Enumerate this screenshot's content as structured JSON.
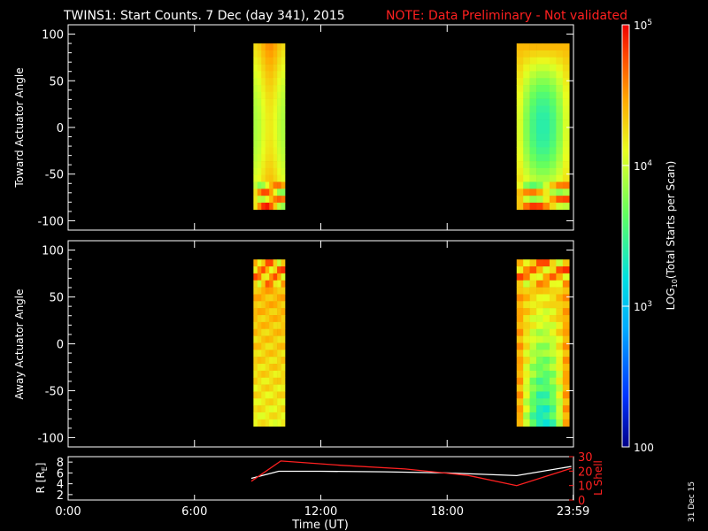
{
  "title": {
    "main": "TWINS1: Start Counts.  7 Dec (day 341), 2015",
    "note": "NOTE: Data Preliminary - Not validated",
    "note_color": "#ff2020"
  },
  "date_stamp": "31 Dec 15",
  "chart_data": [
    {
      "type": "heatmap",
      "name": "toward",
      "ylabel": "Toward Actuator Angle",
      "ylim": [
        -110,
        110
      ],
      "yticks": [
        100,
        50,
        0,
        -50,
        -100
      ],
      "ytick_labels": [
        "100",
        "50",
        "0",
        "-50",
        "-100"
      ],
      "xlim": [
        0,
        24
      ],
      "angle_range": [
        -88,
        90
      ],
      "data_intervals": [
        {
          "start_h": 8.8,
          "end_h": 10.3
        },
        {
          "start_h": 21.3,
          "end_h": 23.8
        }
      ]
    },
    {
      "type": "heatmap",
      "name": "away",
      "ylabel": "Away Actuator Angle",
      "ylim": [
        -110,
        110
      ],
      "yticks": [
        100,
        50,
        0,
        -50,
        -100
      ],
      "ytick_labels": [
        "100",
        "50",
        "0",
        "-50",
        "-100"
      ],
      "xlim": [
        0,
        24
      ],
      "angle_range": [
        -88,
        90
      ],
      "data_intervals": [
        {
          "start_h": 8.8,
          "end_h": 10.3
        },
        {
          "start_h": 21.3,
          "end_h": 23.8
        }
      ]
    },
    {
      "type": "line",
      "name": "orbit",
      "ylabel": "R [R",
      "ylabel_sub": "E",
      "ylabel_end": "]",
      "ylim": [
        1,
        9
      ],
      "yticks": [
        8,
        6,
        4,
        2
      ],
      "ytick_labels": [
        "8",
        "6",
        "4",
        "2"
      ],
      "y2label": "L Shell",
      "y2lim": [
        0,
        30
      ],
      "y2ticks": [
        30,
        20,
        10,
        0
      ],
      "y2tick_labels": [
        "30",
        "20",
        "10",
        "0"
      ],
      "xlim": [
        0,
        24
      ],
      "xlabel": "Time (UT)",
      "xticks": [
        0,
        6,
        12,
        18,
        23.983
      ],
      "xtick_labels": [
        "0:00",
        "6:00",
        "12:00",
        "18:00",
        "23:59"
      ],
      "series": [
        {
          "axis": "left",
          "color": "#ffffff",
          "x": [
            8.7,
            10.0,
            12.0,
            15.0,
            18.0,
            21.3,
            23.9
          ],
          "y": [
            5.0,
            6.3,
            6.3,
            6.2,
            6.0,
            5.5,
            7.2
          ]
        },
        {
          "axis": "right",
          "color": "#ff2020",
          "x": [
            8.7,
            10.1,
            13.0,
            16.0,
            19.0,
            21.3,
            23.9
          ],
          "y": [
            13,
            27,
            24,
            21.5,
            17,
            10,
            22
          ]
        }
      ]
    }
  ],
  "colorbar": {
    "label": "LOG",
    "label_sub": "10",
    "label_rest": "(Total Starts per Scan)",
    "ticks": [
      {
        "base": "10",
        "exp": "5",
        "log": 5
      },
      {
        "base": "10",
        "exp": "4",
        "log": 4
      },
      {
        "base": "10",
        "exp": "3",
        "log": 3
      },
      {
        "base": "100",
        "exp": "",
        "log": 2
      }
    ],
    "range_log": [
      2,
      5
    ]
  }
}
